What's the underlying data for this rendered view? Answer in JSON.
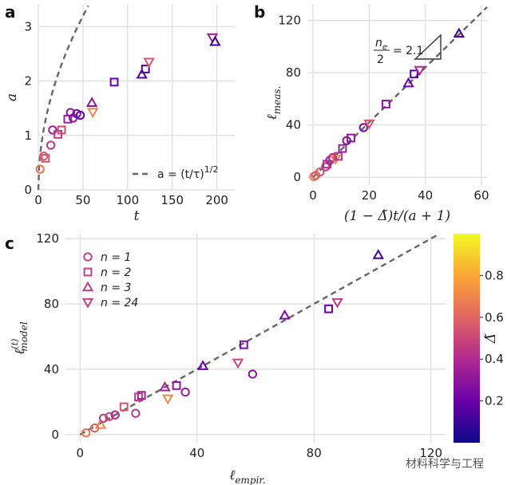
{
  "figure": {
    "watermark": "材料科学与工程",
    "colormap": [
      "#0d0887",
      "#6a00a8",
      "#b12a90",
      "#e16462",
      "#fca636",
      "#f0f921"
    ]
  },
  "chart_data": [
    {
      "id": "a",
      "panel_label": "a",
      "type": "scatter",
      "xlabel": "t",
      "ylabel": "a",
      "xlim": [
        0,
        220
      ],
      "ylim": [
        0,
        3.4
      ],
      "xticks": [
        "0",
        "50",
        "100",
        "150",
        "200"
      ],
      "yticks": [
        "0",
        "1",
        "2",
        "3"
      ],
      "grid": true,
      "fit": {
        "label": "a = (t/τ)^{1/2}",
        "label_base": "a = (t/τ)",
        "label_exp": "1/2",
        "tau": 4.9,
        "style": "dashed",
        "color": "#666666"
      },
      "points": [
        {
          "x": 2,
          "y": 0.38,
          "marker": "circle",
          "delta": 0.65
        },
        {
          "x": 6,
          "y": 0.62,
          "marker": "circle",
          "delta": 0.55
        },
        {
          "x": 8,
          "y": 0.58,
          "marker": "square",
          "delta": 0.55
        },
        {
          "x": 14,
          "y": 0.82,
          "marker": "circle",
          "delta": 0.45
        },
        {
          "x": 16,
          "y": 1.1,
          "marker": "circle",
          "delta": 0.35
        },
        {
          "x": 22,
          "y": 1.02,
          "marker": "square",
          "delta": 0.45
        },
        {
          "x": 26,
          "y": 1.1,
          "marker": "square",
          "delta": 0.5
        },
        {
          "x": 33,
          "y": 1.3,
          "marker": "square",
          "delta": 0.35
        },
        {
          "x": 36,
          "y": 1.42,
          "marker": "circle",
          "delta": 0.3
        },
        {
          "x": 39,
          "y": 1.32,
          "marker": "circle",
          "delta": 0.3
        },
        {
          "x": 43,
          "y": 1.4,
          "marker": "circle",
          "delta": 0.25
        },
        {
          "x": 47,
          "y": 1.37,
          "marker": "circle",
          "delta": 0.2
        },
        {
          "x": 60,
          "y": 1.6,
          "marker": "triangle-up",
          "delta": 0.3
        },
        {
          "x": 61,
          "y": 1.43,
          "marker": "triangle-down",
          "delta": 0.7
        },
        {
          "x": 85,
          "y": 1.98,
          "marker": "square",
          "delta": 0.2
        },
        {
          "x": 116,
          "y": 2.12,
          "marker": "triangle-up",
          "delta": 0.15
        },
        {
          "x": 120,
          "y": 2.22,
          "marker": "square",
          "delta": 0.15
        },
        {
          "x": 124,
          "y": 2.35,
          "marker": "triangle-down",
          "delta": 0.55
        },
        {
          "x": 195,
          "y": 2.8,
          "marker": "triangle-down",
          "delta": 0.35
        },
        {
          "x": 198,
          "y": 2.72,
          "marker": "triangle-up",
          "delta": 0.1
        }
      ]
    },
    {
      "id": "b",
      "panel_label": "b",
      "type": "scatter",
      "xlabel": "(1 − Δ̃)t/(a + 1)",
      "ylabel": "ℓ",
      "ylabel_sub": "meas.",
      "xlim": [
        -2,
        62
      ],
      "ylim": [
        -6,
        132
      ],
      "xticks": [
        "0",
        "20",
        "40",
        "60"
      ],
      "yticks": [
        "0",
        "40",
        "80",
        "120"
      ],
      "grid": true,
      "fit": {
        "slope": 2.1,
        "style": "dashed",
        "color": "#666666"
      },
      "slope_triangle": {
        "numerator": "n",
        "numerator_sub": "e",
        "denominator": "2",
        "text": "= 2.1"
      },
      "points": [
        {
          "x": 0.3,
          "y": 0.5,
          "marker": "circle",
          "delta": 0.65
        },
        {
          "x": 1.0,
          "y": 1.5,
          "marker": "circle",
          "delta": 0.6
        },
        {
          "x": 2.5,
          "y": 4.0,
          "marker": "circle",
          "delta": 0.55
        },
        {
          "x": 4.5,
          "y": 8.0,
          "marker": "circle",
          "delta": 0.45
        },
        {
          "x": 5.0,
          "y": 10.0,
          "marker": "square",
          "delta": 0.4
        },
        {
          "x": 6.0,
          "y": 13.0,
          "marker": "circle",
          "delta": 0.35
        },
        {
          "x": 7.0,
          "y": 15.0,
          "marker": "circle",
          "delta": 0.4
        },
        {
          "x": 8.0,
          "y": 14.0,
          "marker": "triangle-down",
          "delta": 0.7
        },
        {
          "x": 9.0,
          "y": 16.0,
          "marker": "square",
          "delta": 0.45
        },
        {
          "x": 10.5,
          "y": 22.0,
          "marker": "square",
          "delta": 0.35
        },
        {
          "x": 12.0,
          "y": 28.0,
          "marker": "circle",
          "delta": 0.3
        },
        {
          "x": 13.5,
          "y": 30.0,
          "marker": "square",
          "delta": 0.3
        },
        {
          "x": 18.0,
          "y": 38.0,
          "marker": "circle",
          "delta": 0.25
        },
        {
          "x": 20.0,
          "y": 41.0,
          "marker": "triangle-down",
          "delta": 0.55
        },
        {
          "x": 26.0,
          "y": 56.0,
          "marker": "square",
          "delta": 0.3
        },
        {
          "x": 34.0,
          "y": 72.0,
          "marker": "triangle-up",
          "delta": 0.2
        },
        {
          "x": 36.0,
          "y": 79.0,
          "marker": "square",
          "delta": 0.15
        },
        {
          "x": 38.0,
          "y": 82.0,
          "marker": "triangle-down",
          "delta": 0.4
        },
        {
          "x": 52.0,
          "y": 110.0,
          "marker": "triangle-up",
          "delta": 0.1
        }
      ]
    },
    {
      "id": "c",
      "panel_label": "c",
      "type": "scatter",
      "xlabel": "ℓ",
      "xlabel_sub": "empir.",
      "ylabel": "ℓ",
      "ylabel_sup": "(t)",
      "ylabel_sub": "model",
      "xlim": [
        -5,
        125
      ],
      "ylim": [
        -5,
        123
      ],
      "xticks": [
        "0",
        "40",
        "80",
        "120"
      ],
      "yticks": [
        "0",
        "40",
        "80",
        "120"
      ],
      "grid": true,
      "fit": {
        "slope": 1.0,
        "style": "dashed",
        "color": "#666666"
      },
      "legend": {
        "position": "top-left",
        "entries": [
          {
            "marker": "circle",
            "label": "n = 1",
            "color": "#c2408a"
          },
          {
            "marker": "square",
            "label": "n = 2",
            "color": "#c2408a"
          },
          {
            "marker": "triangle-up",
            "label": "n = 3",
            "color": "#c2408a"
          },
          {
            "marker": "triangle-down",
            "label": "n = 24",
            "color": "#c2408a"
          }
        ]
      },
      "colorbar": {
        "label": "Δ̃",
        "range": [
          0,
          1
        ],
        "ticks": [
          "0.2",
          "0.4",
          "0.6",
          "0.8"
        ],
        "tick_values": [
          0.2,
          0.4,
          0.6,
          0.8
        ]
      },
      "points": [
        {
          "x": 2,
          "y": 1,
          "marker": "circle",
          "delta": 0.65
        },
        {
          "x": 5,
          "y": 4,
          "marker": "circle",
          "delta": 0.6
        },
        {
          "x": 7,
          "y": 6,
          "marker": "triangle-up",
          "delta": 0.7
        },
        {
          "x": 8,
          "y": 10,
          "marker": "circle",
          "delta": 0.45
        },
        {
          "x": 10,
          "y": 11,
          "marker": "circle",
          "delta": 0.5
        },
        {
          "x": 12,
          "y": 12,
          "marker": "circle",
          "delta": 0.4
        },
        {
          "x": 15,
          "y": 17,
          "marker": "square",
          "delta": 0.55
        },
        {
          "x": 19,
          "y": 13,
          "marker": "circle",
          "delta": 0.45
        },
        {
          "x": 20,
          "y": 23,
          "marker": "square",
          "delta": 0.45
        },
        {
          "x": 21,
          "y": 24,
          "marker": "square",
          "delta": 0.35
        },
        {
          "x": 29,
          "y": 29,
          "marker": "triangle-up",
          "delta": 0.35
        },
        {
          "x": 30,
          "y": 22,
          "marker": "triangle-down",
          "delta": 0.7
        },
        {
          "x": 33,
          "y": 30,
          "marker": "square",
          "delta": 0.3
        },
        {
          "x": 36,
          "y": 26,
          "marker": "circle",
          "delta": 0.35
        },
        {
          "x": 42,
          "y": 42,
          "marker": "triangle-up",
          "delta": 0.2
        },
        {
          "x": 54,
          "y": 44,
          "marker": "triangle-down",
          "delta": 0.5
        },
        {
          "x": 56,
          "y": 55,
          "marker": "square",
          "delta": 0.25
        },
        {
          "x": 59,
          "y": 37,
          "marker": "circle",
          "delta": 0.3
        },
        {
          "x": 70,
          "y": 73,
          "marker": "triangle-up",
          "delta": 0.25
        },
        {
          "x": 85,
          "y": 77,
          "marker": "square",
          "delta": 0.2
        },
        {
          "x": 88,
          "y": 81,
          "marker": "triangle-down",
          "delta": 0.45
        },
        {
          "x": 102,
          "y": 110,
          "marker": "triangle-up",
          "delta": 0.1
        }
      ]
    }
  ]
}
